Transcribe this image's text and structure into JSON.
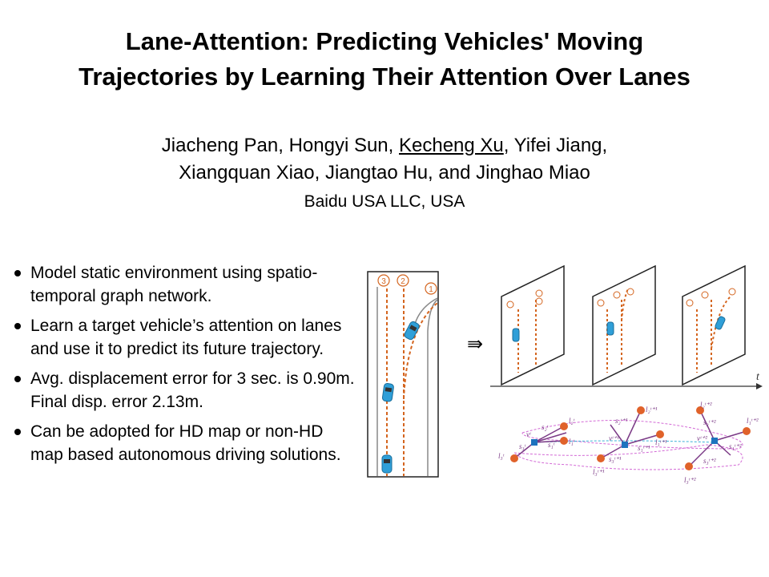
{
  "title": {
    "line1": "Lane-Attention: Predicting Vehicles' Moving",
    "line2": "Trajectories by Learning Their Attention Over Lanes"
  },
  "authors": {
    "line1_a": "Jiacheng Pan, Hongyi Sun, ",
    "line1_presenter": "Kecheng Xu",
    "line1_b": ", Yifei Jiang,",
    "line2": "Xiangquan Xiao, Jiangtao Hu, and Jinghao Miao"
  },
  "affiliation": "Baidu USA LLC, USA",
  "bullets": [
    "Model static environment using spatio-temporal graph network.",
    "Learn a target vehicle’s attention on lanes and use it to predict its future trajectory.",
    "Avg. displacement error for 3 sec. is 0.90m. Final disp. error 2.13m.",
    "Can be adopted for HD map or non-HD map based autonomous driving solutions."
  ],
  "figure": {
    "lane_labels": [
      "③",
      "②",
      "①"
    ],
    "arrow_symbol": "⇛",
    "time_axis_label": "t",
    "graph_labels": {
      "l3_t": "l₃ᵗ",
      "s3_t": "s₃ᵗ",
      "s2_t": "s₂ᵗ",
      "l2_t": "l₂ᵗ",
      "s1_t": "s₁ᵗ",
      "l1_t": "l₁ᵗ",
      "v_t": "vᵗ",
      "s2_t1": "s₂ᵗ⁺¹",
      "l2_t1": "l₂ᵗ⁺¹",
      "v_t1": "vᵗ⁺¹",
      "l1_t1": "l₁ᵗ⁺¹",
      "s1_t1": "s₁ᵗ⁺¹",
      "s3_t1": "s₃ᵗ⁺¹",
      "l3_t1": "l₃ᵗ⁺¹",
      "l2_t2": "l₂ᵗ⁺²",
      "s2_t2": "s₂ᵗ⁺²",
      "v_t2": "vᵗ⁺²",
      "l1_t2": "l₁ᵗ⁺²",
      "s1_t2": "s₁ᵗ⁺²",
      "s3_t2": "s₃ᵗ⁺²",
      "l3_t2": "l₃ᵗ⁺²"
    },
    "colors": {
      "lane_dash": "#d4651f",
      "node": "#e0622a",
      "vehicle": "#2f9fd8",
      "edge": "#7b3a86",
      "dash_magenta": "#d36ad6",
      "dash_blue": "#3ab0d8"
    }
  }
}
